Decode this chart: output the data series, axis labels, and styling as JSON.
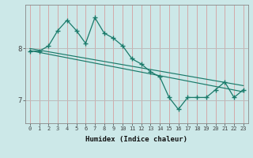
{
  "xlabel": "Humidex (Indice chaleur)",
  "background_color": "#cce8e8",
  "vgrid_color": "#d4a0a0",
  "hgrid_color": "#bbbbbb",
  "line_color": "#1a7a6a",
  "xlim": [
    -0.5,
    23.5
  ],
  "ylim": [
    6.55,
    8.85
  ],
  "yticks": [
    7,
    8
  ],
  "xticks": [
    0,
    1,
    2,
    3,
    4,
    5,
    6,
    7,
    8,
    9,
    10,
    11,
    12,
    13,
    14,
    15,
    16,
    17,
    18,
    19,
    20,
    21,
    22,
    23
  ],
  "zigzag_x": [
    0,
    1,
    2,
    3,
    4,
    5,
    6,
    7,
    8,
    9,
    10,
    11,
    12,
    13,
    14,
    15,
    16,
    17,
    18,
    19,
    20,
    21,
    22,
    23
  ],
  "zigzag_y": [
    7.95,
    7.95,
    8.05,
    8.35,
    8.55,
    8.35,
    8.1,
    8.6,
    8.3,
    8.2,
    8.05,
    7.8,
    7.7,
    7.55,
    7.45,
    7.05,
    6.82,
    7.05,
    7.05,
    7.05,
    7.2,
    7.35,
    7.05,
    7.2
  ],
  "trend1_x": [
    0,
    23
  ],
  "trend1_y": [
    8.0,
    7.28
  ],
  "trend2_x": [
    0,
    23
  ],
  "trend2_y": [
    7.96,
    7.16
  ]
}
